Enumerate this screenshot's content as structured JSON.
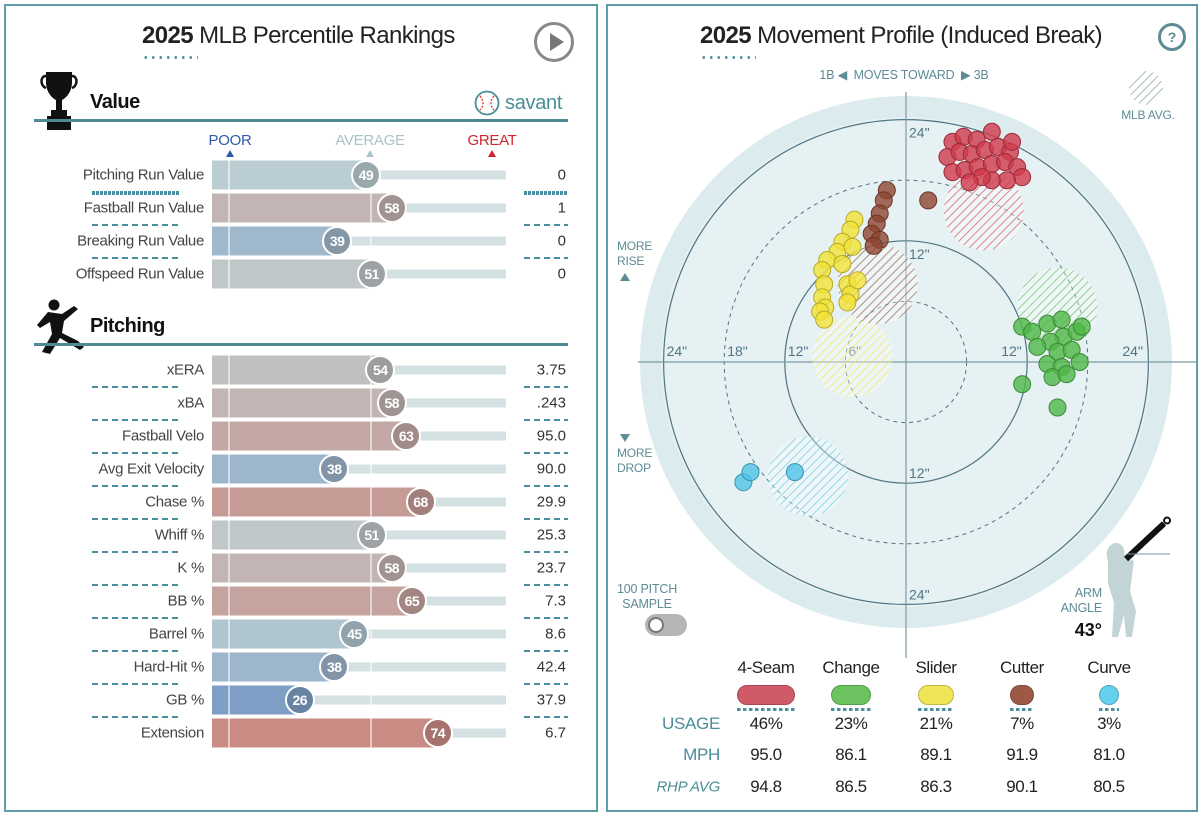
{
  "left": {
    "title_year": "2025",
    "title_rest": "MLB Percentile Rankings",
    "play_icon": "play-circle-icon",
    "value_section": {
      "title": "Value",
      "icon": "trophy-icon",
      "brand": "savant"
    },
    "legend": {
      "poor": "POOR",
      "average": "AVERAGE",
      "great": "GREAT",
      "poor_color": "#2f5aa8",
      "average_color": "#a8c4c8",
      "great_color": "#d0262b"
    },
    "value_rows": [
      {
        "label": "Pitching Run Value",
        "percentile": 49,
        "value": "0"
      },
      {
        "label": "Fastball Run Value",
        "percentile": 58,
        "value": "1"
      },
      {
        "label": "Breaking Run Value",
        "percentile": 39,
        "value": "0"
      },
      {
        "label": "Offspeed Run Value",
        "percentile": 51,
        "value": "0"
      }
    ],
    "pitching_section": {
      "title": "Pitching",
      "icon": "pitcher-icon"
    },
    "pitching_rows": [
      {
        "label": "xERA",
        "percentile": 54,
        "value": "3.75"
      },
      {
        "label": "xBA",
        "percentile": 58,
        "value": ".243"
      },
      {
        "label": "Fastball Velo",
        "percentile": 63,
        "value": "95.0"
      },
      {
        "label": "Avg Exit Velocity",
        "percentile": 38,
        "value": "90.0"
      },
      {
        "label": "Chase %",
        "percentile": 68,
        "value": "29.9"
      },
      {
        "label": "Whiff %",
        "percentile": 51,
        "value": "25.3"
      },
      {
        "label": "K %",
        "percentile": 58,
        "value": "23.7"
      },
      {
        "label": "BB %",
        "percentile": 65,
        "value": "7.3"
      },
      {
        "label": "Barrel %",
        "percentile": 45,
        "value": "8.6"
      },
      {
        "label": "Hard-Hit %",
        "percentile": 38,
        "value": "42.4"
      },
      {
        "label": "GB %",
        "percentile": 26,
        "value": "37.9"
      },
      {
        "label": "Extension",
        "percentile": 74,
        "value": "6.7"
      }
    ]
  },
  "right": {
    "title_year": "2025",
    "title_rest": "Movement Profile (Induced Break)",
    "help_icon": "question-circle-icon",
    "direction": {
      "left": "1B",
      "middle": "MOVES TOWARD",
      "right": "3B"
    },
    "mlb_avg_label": "MLB AVG.",
    "more_rise": [
      "MORE",
      "RISE"
    ],
    "more_drop": [
      "MORE",
      "DROP"
    ],
    "sample_toggle": {
      "label": [
        "100 PITCH",
        "SAMPLE"
      ],
      "on": false
    },
    "arm_angle": {
      "label": [
        "ARM",
        "ANGLE"
      ],
      "value": "43°",
      "degrees": 43
    },
    "table": {
      "row_labels": {
        "usage": "USAGE",
        "mph": "MPH",
        "rhp_avg": "RHP AVG"
      },
      "pitches": [
        {
          "name": "4-Seam",
          "color": "#d05a67",
          "usage": "46%",
          "mph": "95.0",
          "rhp_avg": "94.8"
        },
        {
          "name": "Change",
          "color": "#6cc35f",
          "usage": "23%",
          "mph": "86.1",
          "rhp_avg": "86.5"
        },
        {
          "name": "Slider",
          "color": "#efe557",
          "usage": "21%",
          "mph": "89.1",
          "rhp_avg": "86.3"
        },
        {
          "name": "Cutter",
          "color": "#9c5a46",
          "usage": "7%",
          "mph": "91.9",
          "rhp_avg": "90.1"
        },
        {
          "name": "Curve",
          "color": "#66d0ec",
          "usage": "3%",
          "mph": "81.0",
          "rhp_avg": "80.5"
        }
      ]
    }
  },
  "chart_data": {
    "type": "scatter",
    "title": "2025 Movement Profile (Induced Break)",
    "x_unit": "inches horizontal break (+ toward 3B)",
    "y_unit": "inches induced vertical break",
    "ring_labels_horizontal_left": [
      "24\"",
      "18\"",
      "12\"",
      "6\""
    ],
    "ring_labels_horizontal_right": [
      "12\"",
      "24\""
    ],
    "ring_labels_vertical": [
      "24\"",
      "12\"",
      "12\"",
      "24\""
    ],
    "rings_solid": [
      12,
      24
    ],
    "rings_dashed": [
      6,
      18
    ],
    "series": [
      {
        "name": "4-Seam",
        "color": "#d0394b",
        "mlb_avg": [
          7.7,
          15.0
        ],
        "points": [
          [
            4.6,
            21.8
          ],
          [
            5.7,
            22.3
          ],
          [
            7.0,
            22.0
          ],
          [
            8.5,
            22.8
          ],
          [
            4.1,
            20.3
          ],
          [
            5.3,
            20.8
          ],
          [
            6.5,
            20.6
          ],
          [
            7.8,
            21.0
          ],
          [
            9.1,
            21.3
          ],
          [
            10.3,
            20.8
          ],
          [
            4.6,
            18.8
          ],
          [
            5.8,
            19.0
          ],
          [
            7.1,
            19.3
          ],
          [
            8.5,
            19.6
          ],
          [
            9.8,
            19.8
          ],
          [
            11.0,
            19.3
          ],
          [
            11.5,
            18.3
          ],
          [
            10.0,
            18.0
          ],
          [
            8.5,
            18.0
          ],
          [
            7.5,
            18.3
          ],
          [
            6.3,
            17.8
          ],
          [
            10.5,
            21.8
          ]
        ]
      },
      {
        "name": "Change",
        "color": "#4fb847",
        "mlb_avg": [
          15.0,
          5.4
        ],
        "points": [
          [
            11.5,
            3.5
          ],
          [
            12.5,
            3.0
          ],
          [
            14.0,
            3.8
          ],
          [
            15.4,
            4.2
          ],
          [
            15.6,
            2.5
          ],
          [
            16.9,
            3.0
          ],
          [
            14.3,
            2.0
          ],
          [
            13.0,
            1.5
          ],
          [
            15.0,
            1.0
          ],
          [
            16.4,
            1.2
          ],
          [
            17.2,
            0.0
          ],
          [
            14.0,
            -0.2
          ],
          [
            15.4,
            -0.5
          ],
          [
            14.5,
            -1.5
          ],
          [
            15.9,
            -1.2
          ],
          [
            11.5,
            -2.2
          ],
          [
            17.4,
            3.5
          ],
          [
            15.0,
            -4.5
          ]
        ]
      },
      {
        "name": "Slider",
        "color": "#f2e436",
        "mlb_avg": [
          -5.3,
          0.5
        ],
        "points": [
          [
            -5.1,
            14.1
          ],
          [
            -5.5,
            13.1
          ],
          [
            -6.3,
            11.9
          ],
          [
            -6.8,
            10.9
          ],
          [
            -7.8,
            10.1
          ],
          [
            -8.3,
            9.1
          ],
          [
            -8.1,
            7.7
          ],
          [
            -8.3,
            6.4
          ],
          [
            -8.0,
            5.4
          ],
          [
            -8.5,
            5.0
          ],
          [
            -8.1,
            4.2
          ],
          [
            -5.8,
            7.7
          ],
          [
            -5.5,
            6.7
          ],
          [
            -5.8,
            5.9
          ],
          [
            -4.8,
            8.1
          ],
          [
            -6.3,
            9.7
          ],
          [
            -5.3,
            11.4
          ]
        ]
      },
      {
        "name": "Cutter",
        "color": "#8f4632",
        "mlb_avg": [
          -2.8,
          7.7
        ],
        "points": [
          [
            -1.9,
            17.0
          ],
          [
            -2.2,
            16.0
          ],
          [
            -2.6,
            14.7
          ],
          [
            -2.9,
            13.7
          ],
          [
            -3.4,
            12.7
          ],
          [
            -2.6,
            12.1
          ],
          [
            -3.2,
            11.5
          ],
          [
            2.2,
            16.0
          ]
        ]
      },
      {
        "name": "Curve",
        "color": "#4fc4e6",
        "mlb_avg": [
          -9.7,
          -11.3
        ],
        "points": [
          [
            -16.1,
            -11.9
          ],
          [
            -15.4,
            -10.9
          ],
          [
            -11.0,
            -10.9
          ]
        ]
      }
    ]
  }
}
